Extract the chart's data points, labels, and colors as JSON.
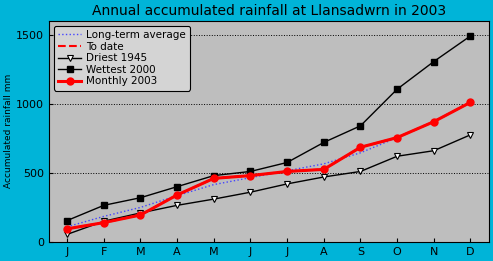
{
  "title": "Annual accumulated rainfall at Llansadwrn in 2003",
  "ylabel": "Accumulated rainfall mm",
  "months": [
    "J",
    "F",
    "M",
    "A",
    "M",
    "J",
    "J",
    "A",
    "S",
    "O",
    "N",
    "D"
  ],
  "driest_1945": [
    55,
    150,
    210,
    265,
    310,
    360,
    420,
    470,
    510,
    620,
    660,
    775
  ],
  "wettest_2000": [
    155,
    265,
    320,
    400,
    480,
    510,
    575,
    720,
    840,
    1105,
    1305,
    1490
  ],
  "monthly_2003": [
    95,
    140,
    195,
    340,
    460,
    480,
    510,
    525,
    685,
    755,
    870,
    1010
  ],
  "longterm_avg": [
    110,
    185,
    250,
    335,
    415,
    465,
    515,
    565,
    645,
    755,
    875,
    1005
  ],
  "to_date": [
    95,
    140,
    195,
    340,
    460,
    480,
    510,
    525,
    685,
    755,
    870,
    1010
  ],
  "ylim": [
    0,
    1600
  ],
  "yticks": [
    0,
    500,
    1000,
    1500
  ],
  "bg_color": "#bebebe",
  "outer_bg": "#00b4d8",
  "title_fontsize": 10,
  "axis_fontsize": 8,
  "legend_fontsize": 7.5
}
